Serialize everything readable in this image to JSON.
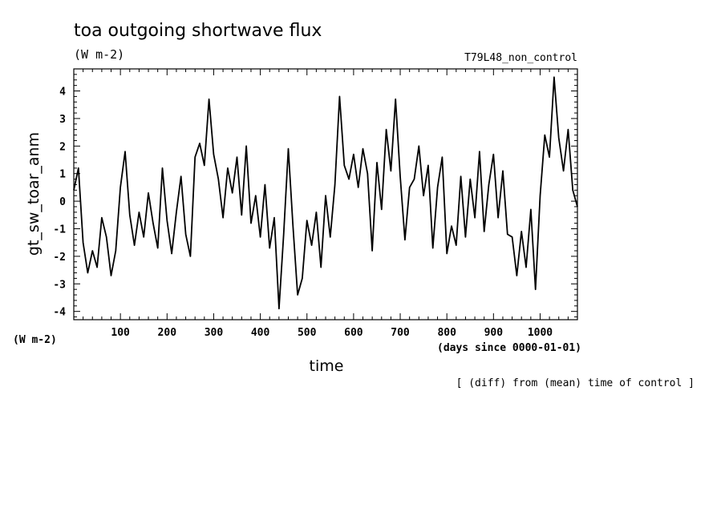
{
  "chart_data": {
    "type": "line",
    "title": "toa outgoing shortwave flux",
    "units": "(W m-2)",
    "experiment": "T79L48_non_control",
    "ylabel": "gt_sw_toar_anm",
    "yunits": "(W m-2)",
    "xlabel": "time",
    "xunits": "(days since 0000-01-01)",
    "footnote": "[ (diff) from (mean) time of control ]",
    "xlim": [
      0,
      1080
    ],
    "ylim": [
      -4.3,
      4.8
    ],
    "xticks": [
      100,
      200,
      300,
      400,
      500,
      600,
      700,
      800,
      900,
      1000
    ],
    "xtick_labels": [
      "100",
      "200",
      "300",
      "400",
      "500",
      "600",
      "700",
      "800",
      "900",
      "1000"
    ],
    "yticks": [
      -4,
      -3,
      -2,
      -1,
      0,
      1,
      2,
      3,
      4
    ],
    "ytick_labels": [
      "-4",
      "-3",
      "-2",
      "-1",
      "0",
      "1",
      "2",
      "3",
      "4"
    ],
    "grid": false,
    "legend": "none",
    "line_color": "#000000",
    "series": [
      {
        "x": [
          0,
          10,
          20,
          30,
          40,
          50,
          60,
          70,
          80,
          90,
          100,
          110,
          120,
          130,
          140,
          150,
          160,
          170,
          180,
          190,
          200,
          210,
          220,
          230,
          240,
          250,
          260,
          270,
          280,
          290,
          300,
          310,
          320,
          330,
          340,
          350,
          360,
          370,
          380,
          390,
          400,
          410,
          420,
          430,
          440,
          450,
          460,
          470,
          480,
          490,
          500,
          510,
          520,
          530,
          540,
          550,
          560,
          570,
          580,
          590,
          600,
          610,
          620,
          630,
          640,
          650,
          660,
          670,
          680,
          690,
          700,
          710,
          720,
          730,
          740,
          750,
          760,
          770,
          780,
          790,
          800,
          810,
          820,
          830,
          840,
          850,
          860,
          870,
          880,
          890,
          900,
          910,
          920,
          930,
          940,
          950,
          960,
          970,
          980,
          990,
          1000,
          1010,
          1020,
          1030,
          1040,
          1050,
          1060,
          1070,
          1080
        ],
        "values": [
          0.4,
          1.2,
          -1.5,
          -2.6,
          -1.8,
          -2.4,
          -0.6,
          -1.3,
          -2.7,
          -1.8,
          0.5,
          1.8,
          -0.5,
          -1.6,
          -0.4,
          -1.3,
          0.3,
          -0.8,
          -1.7,
          1.2,
          -0.7,
          -1.9,
          -0.4,
          0.9,
          -1.2,
          -2.0,
          1.6,
          2.1,
          1.3,
          3.7,
          1.7,
          0.8,
          -0.6,
          1.2,
          0.3,
          1.6,
          -0.5,
          2.0,
          -0.8,
          0.2,
          -1.3,
          0.6,
          -1.7,
          -0.6,
          -3.9,
          -1.2,
          1.9,
          -0.9,
          -3.4,
          -2.8,
          -0.7,
          -1.6,
          -0.4,
          -2.4,
          0.2,
          -1.3,
          0.6,
          3.8,
          1.3,
          0.8,
          1.7,
          0.5,
          1.9,
          1.0,
          -1.8,
          1.4,
          -0.3,
          2.6,
          1.1,
          3.7,
          0.9,
          -1.4,
          0.5,
          0.8,
          2.0,
          0.2,
          1.3,
          -1.7,
          0.5,
          1.6,
          -1.9,
          -0.9,
          -1.6,
          0.9,
          -1.3,
          0.8,
          -0.6,
          1.8,
          -1.1,
          0.6,
          1.7,
          -0.6,
          1.1,
          -1.2,
          -1.3,
          -2.7,
          -1.1,
          -2.4,
          -0.3,
          -3.2,
          0.2,
          2.4,
          1.6,
          4.5,
          2.3,
          1.1,
          2.6,
          0.4,
          -0.2
        ]
      }
    ]
  }
}
